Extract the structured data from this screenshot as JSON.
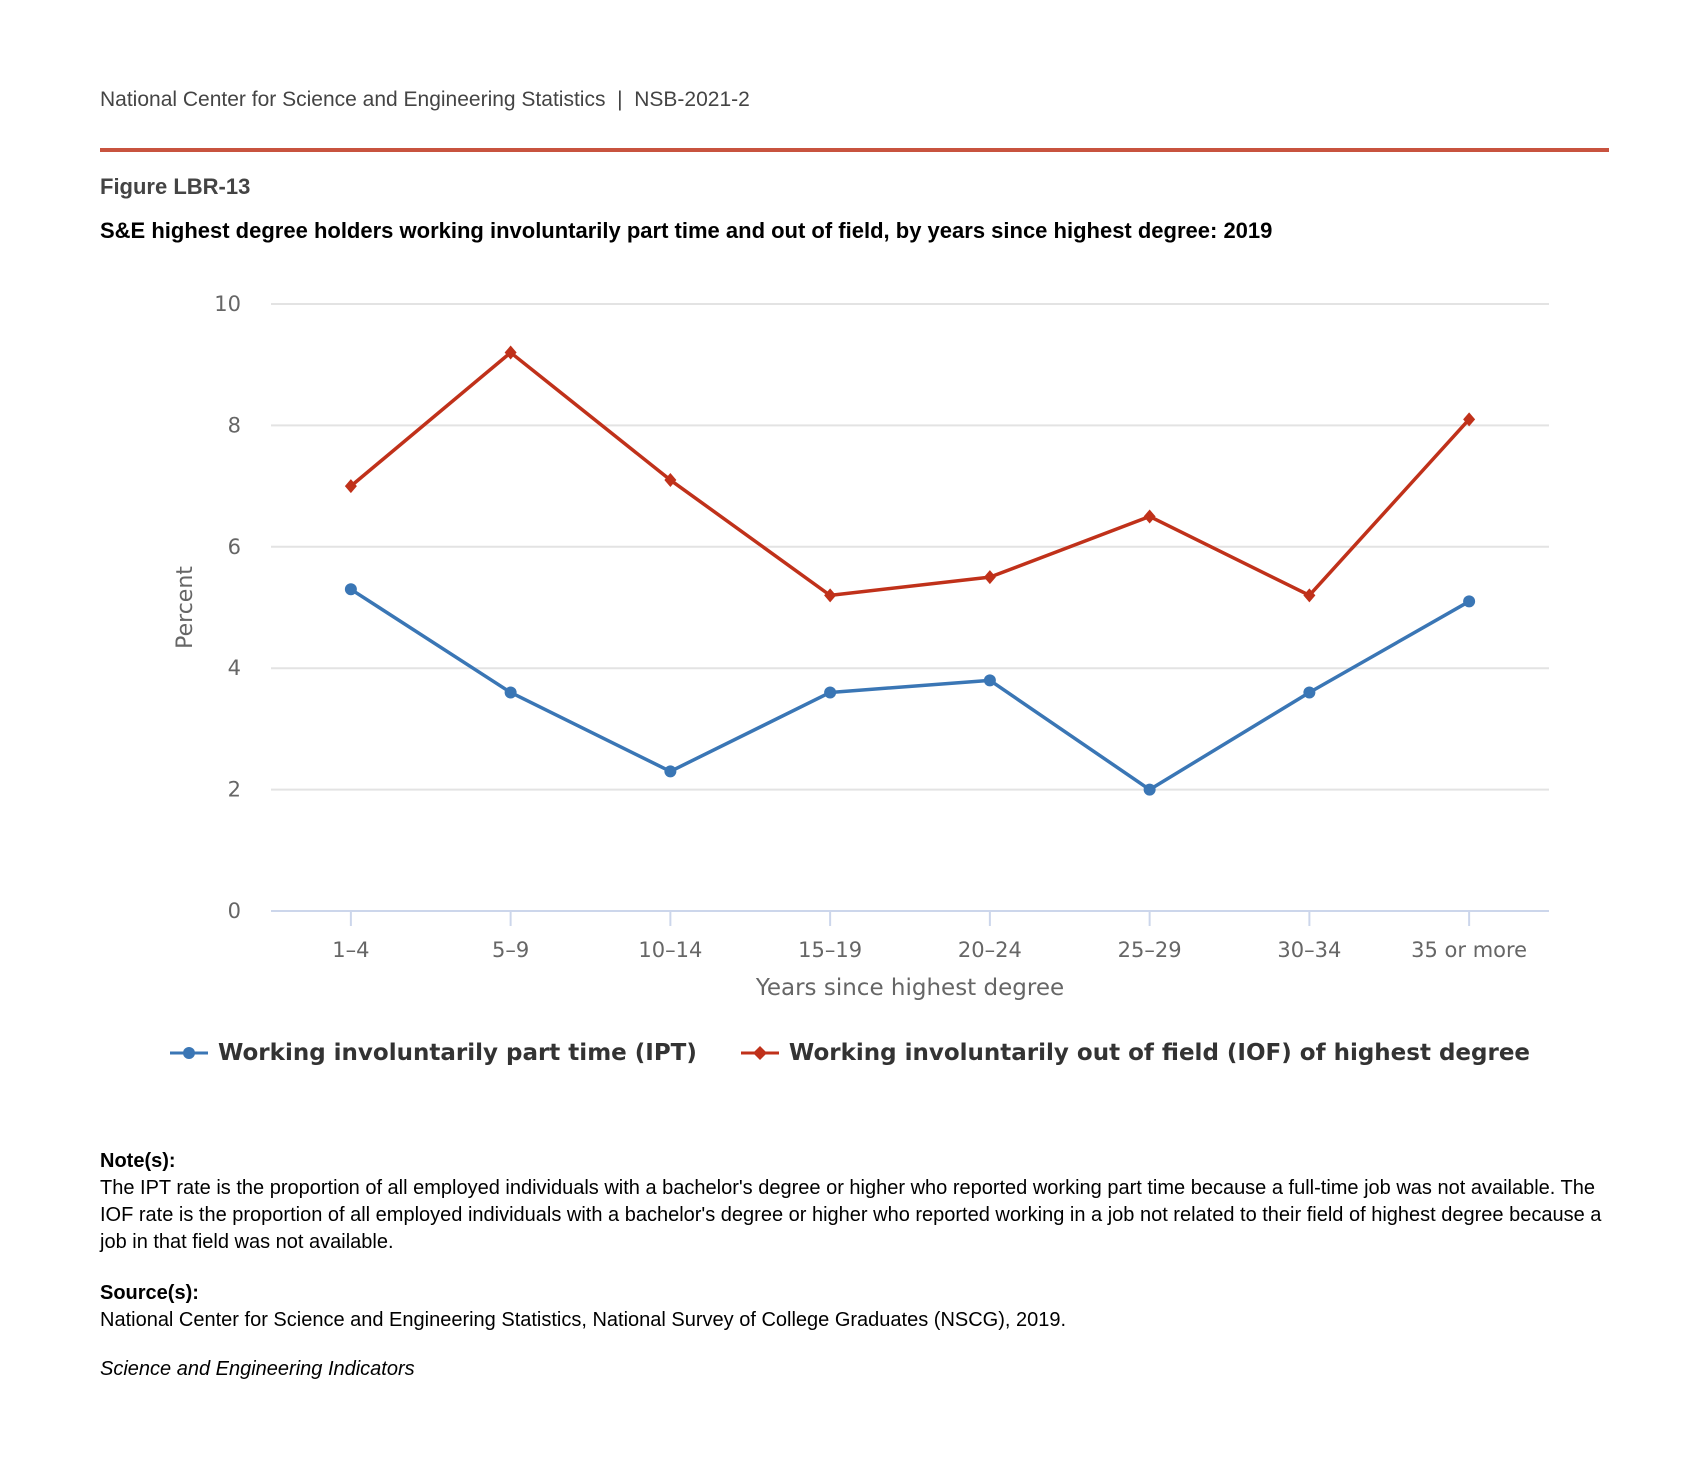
{
  "header": {
    "org": "National Center for Science and Engineering Statistics  |  NSB-2021-2"
  },
  "figure": {
    "number": "Figure LBR-13",
    "title": "S&E highest degree holders working involuntarily part time and out of field, by years since highest degree: 2019"
  },
  "chart_data": {
    "type": "line",
    "categories": [
      "1–4",
      "5–9",
      "10–14",
      "15–19",
      "20–24",
      "25–29",
      "30–34",
      "35 or more"
    ],
    "series": [
      {
        "name": "Working involuntarily part time (IPT)",
        "color": "#3a76b5",
        "marker": "circle",
        "values": [
          5.3,
          3.6,
          2.3,
          3.6,
          3.8,
          2.0,
          3.6,
          5.1
        ]
      },
      {
        "name": "Working involuntarily out of field (IOF) of highest degree",
        "color": "#c0311a",
        "marker": "diamond",
        "values": [
          7.0,
          9.2,
          7.1,
          5.2,
          5.5,
          6.5,
          5.2,
          8.1
        ]
      }
    ],
    "xlabel": "Years since highest degree",
    "ylabel": "Percent",
    "ylim": [
      0,
      10
    ],
    "yticks": [
      "0",
      "2",
      "4",
      "6",
      "8",
      "10"
    ],
    "grid": true,
    "legend": "bottom"
  },
  "notes": {
    "label": "Note(s):",
    "text": "The IPT rate is the proportion of all employed individuals with a bachelor's degree or higher who reported working part time because a full-time job was not available. The IOF rate is the proportion of all employed individuals with a bachelor's degree or higher who reported working in a job not related to their field of highest degree because a job in that field was not available."
  },
  "sources": {
    "label": "Source(s):",
    "text": "National Center for Science and Engineering Statistics, National Survey of College Graduates (NSCG), 2019."
  },
  "footer": {
    "publication": "Science and Engineering Indicators"
  }
}
